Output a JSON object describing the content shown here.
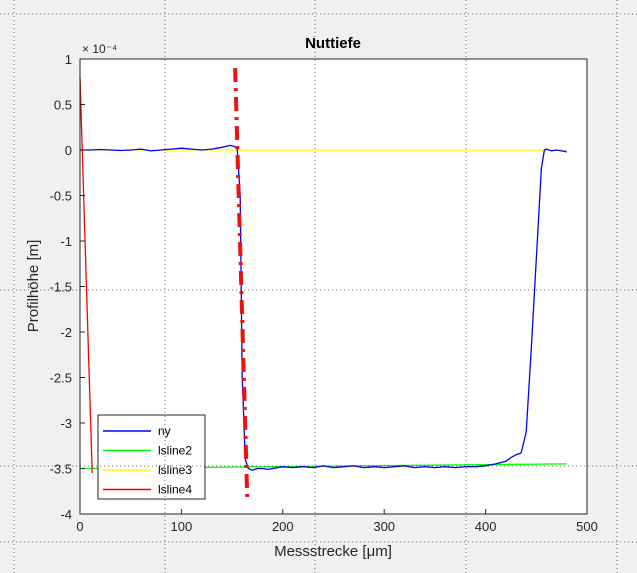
{
  "chart_data": {
    "type": "line",
    "title": "Nuttiefe",
    "xlabel": "Messstrecke [μm]",
    "ylabel": "Profilhöhe [m]",
    "exponent_label": "× 10⁻⁴",
    "xlim": [
      0,
      500
    ],
    "ylim": [
      -4,
      1
    ],
    "x_ticks": [
      0,
      100,
      200,
      300,
      400,
      500
    ],
    "x_tick_labels": [
      "0",
      "100",
      "200",
      "300",
      "400",
      "500"
    ],
    "y_ticks": [
      1,
      0.5,
      0,
      -0.5,
      -1,
      -1.5,
      -2,
      -2.5,
      -3,
      -3.5,
      -4
    ],
    "y_tick_labels": [
      "1",
      "0.5",
      "0",
      "-0.5",
      "-1",
      "-1.5",
      "-2",
      "-2.5",
      "-3",
      "-3.5",
      "-4"
    ],
    "legend_position": "bottom-left",
    "series": [
      {
        "name": "ny",
        "color": "#0000ff",
        "x": [
          0,
          10,
          20,
          30,
          40,
          50,
          60,
          70,
          80,
          90,
          100,
          110,
          120,
          130,
          140,
          148,
          152,
          155,
          158,
          160,
          163,
          166,
          170,
          175,
          180,
          185,
          190,
          200,
          210,
          220,
          230,
          240,
          250,
          260,
          270,
          280,
          290,
          300,
          310,
          320,
          330,
          340,
          350,
          360,
          370,
          380,
          390,
          400,
          410,
          420,
          425,
          430,
          435,
          440,
          445,
          450,
          455,
          458,
          460,
          465,
          470,
          475,
          480
        ],
        "y": [
          0,
          0,
          0.005,
          0,
          -0.005,
          0,
          0.01,
          -0.01,
          0,
          0.01,
          0.02,
          0.01,
          0,
          0.01,
          0.03,
          0.05,
          0.04,
          0.02,
          -0.5,
          -2.5,
          -3.4,
          -3.5,
          -3.52,
          -3.5,
          -3.5,
          -3.51,
          -3.5,
          -3.48,
          -3.49,
          -3.48,
          -3.49,
          -3.47,
          -3.49,
          -3.48,
          -3.47,
          -3.49,
          -3.48,
          -3.49,
          -3.48,
          -3.47,
          -3.49,
          -3.48,
          -3.49,
          -3.48,
          -3.49,
          -3.48,
          -3.48,
          -3.47,
          -3.45,
          -3.42,
          -3.38,
          -3.35,
          -3.33,
          -3.1,
          -2.2,
          -1.2,
          -0.2,
          0,
          0.01,
          -0.01,
          0,
          -0.01,
          -0.02
        ]
      },
      {
        "name": "lsline2",
        "color": "#00ff00",
        "x": [
          0,
          480
        ],
        "y": [
          -3.5,
          -3.45
        ]
      },
      {
        "name": "lsline3",
        "color": "#ffff00",
        "x": [
          0,
          480
        ],
        "y": [
          0,
          0
        ]
      },
      {
        "name": "lsline4",
        "color": "#ff0000",
        "x": [
          0,
          12
        ],
        "y": [
          0.8,
          -3.55
        ]
      }
    ],
    "annotations": [
      {
        "kind": "dash-dot line",
        "color": "#ee1111",
        "x": [
          153,
          165
        ],
        "y": [
          0.9,
          -3.85
        ]
      }
    ]
  }
}
